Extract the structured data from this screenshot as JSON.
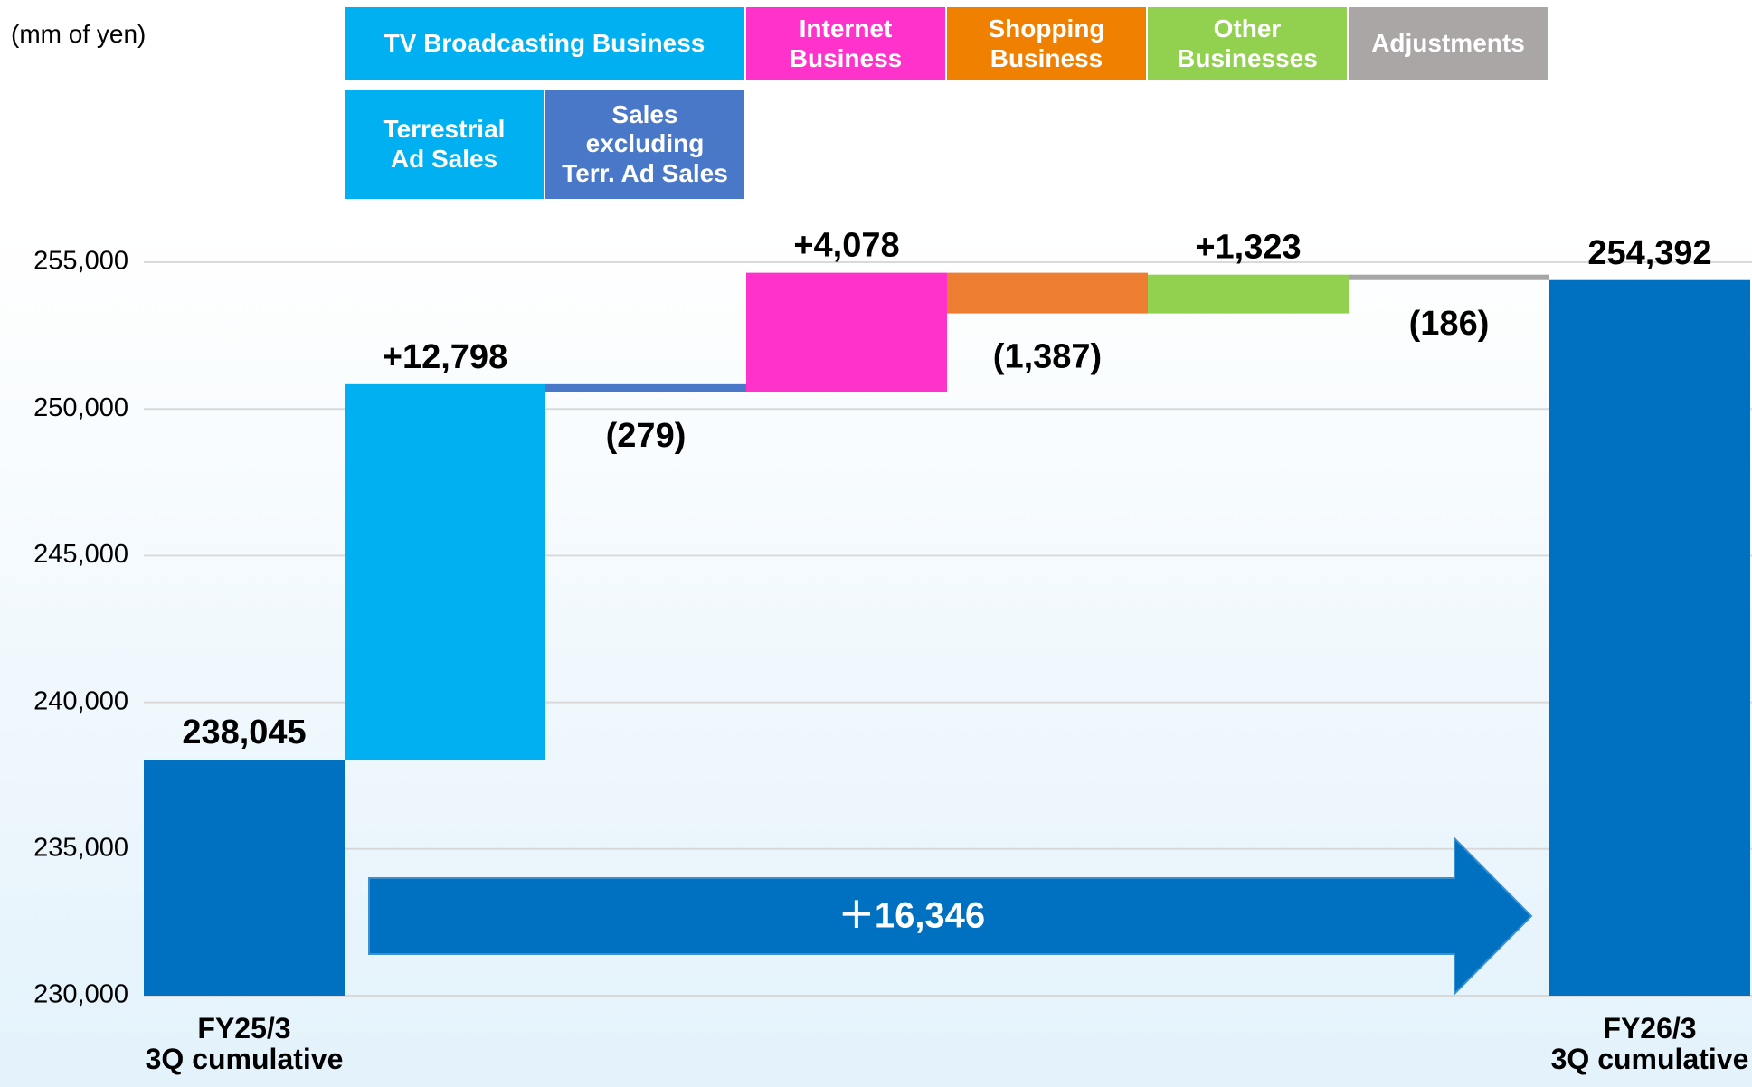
{
  "chart_data": {
    "type": "waterfall",
    "y_label": "(mm of yen)",
    "categories": [
      "FY25/3\n3Q cumulative",
      null,
      null,
      null,
      null,
      null,
      null,
      "FY26/3\n3Q cumulative"
    ],
    "values": [
      238045,
      12798,
      -279,
      4078,
      -1387,
      1323,
      -186,
      254392
    ],
    "value_labels": [
      "238,045",
      "+12,798",
      "(279)",
      "+4,078",
      "(1,387)",
      "+1,323",
      "(186)",
      "254,392"
    ],
    "colors": [
      "#0070c0",
      "#00b0f0",
      "#4a78c8",
      "#ff33cc",
      "#ed7d31",
      "#92d050",
      "#a6a6a6",
      "#0070c0"
    ],
    "ylim": [
      230000,
      255000
    ],
    "yticks": [
      {
        "value": 230000,
        "label": "230,000"
      },
      {
        "value": 235000,
        "label": "235,000"
      },
      {
        "value": 240000,
        "label": "240,000"
      },
      {
        "value": 245000,
        "label": "245,000"
      },
      {
        "value": 250000,
        "label": "250,000"
      },
      {
        "value": 255000,
        "label": "255,000"
      }
    ],
    "grid": true,
    "annotation": "＋16,346",
    "headers": [
      {
        "label": "TV Broadcasting Business",
        "color": "#00b0f0",
        "from": 1,
        "to": 2,
        "row": 0
      },
      {
        "label": "Internet\nBusiness",
        "color": "#ff33cc",
        "from": 3,
        "to": 3,
        "row": 0
      },
      {
        "label": "Shopping\nBusiness",
        "color": "#f08000",
        "from": 4,
        "to": 4,
        "row": 0
      },
      {
        "label": "Other\nBusinesses",
        "color": "#92d050",
        "from": 5,
        "to": 5,
        "row": 0
      },
      {
        "label": "Adjustments",
        "color": "#aaa6a6",
        "from": 6,
        "to": 6,
        "row": 0
      },
      {
        "label": "Terrestrial\nAd Sales",
        "color": "#00b0f0",
        "from": 1,
        "to": 1,
        "row": 1
      },
      {
        "label": "Sales\nexcluding\nTerr. Ad Sales",
        "color": "#4a78c8",
        "from": 2,
        "to": 2,
        "row": 1
      }
    ]
  }
}
